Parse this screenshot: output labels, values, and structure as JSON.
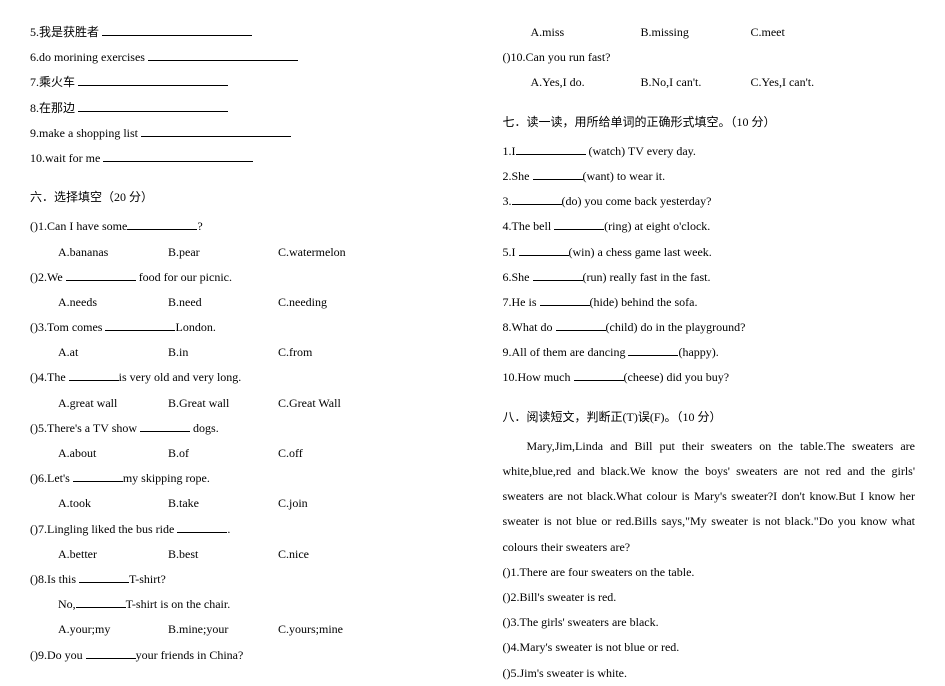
{
  "fontsize": 12,
  "text_color": "#000000",
  "bg_color": "#ffffff",
  "left": {
    "items5_10": [
      "5.我是获胜者",
      "6.do morining exercises",
      "7.乘火车",
      "8.在那边",
      "9.make a shopping list",
      "10.wait for me"
    ],
    "section6_title": "六．选择填空（20 分）",
    "q1": {
      "stem_a": ")1.Can I have some",
      "stem_b": "?",
      "opts": {
        "a": "A.bananas",
        "b": "B.pear",
        "c": "C.watermelon"
      }
    },
    "q2": {
      "stem_a": ")2.We",
      "stem_b": "food for our picnic.",
      "opts": {
        "a": "A.needs",
        "b": "B.need",
        "c": "C.needing"
      }
    },
    "q3": {
      "stem_a": ")3.Tom comes",
      "stem_b": "London.",
      "opts": {
        "a": "A.at",
        "b": "B.in",
        "c": "C.from"
      }
    },
    "q4": {
      "stem_a": ")4.The",
      "stem_b": "is very old and very long.",
      "opts": {
        "a": "A.great wall",
        "b": "B.Great wall",
        "c": "C.Great Wall"
      }
    },
    "q5": {
      "stem_a": ")5.There's a TV show",
      "stem_b": "dogs.",
      "opts": {
        "a": "A.about",
        "b": "B.of",
        "c": "C.off"
      }
    },
    "q6": {
      "stem_a": ")6.Let's",
      "stem_b": "my skipping rope.",
      "opts": {
        "a": "A.took",
        "b": "B.take",
        "c": "C.join"
      }
    },
    "q7": {
      "stem_a": ")7.Lingling liked the bus ride",
      "stem_b": ".",
      "opts": {
        "a": "A.better",
        "b": "B.best",
        "c": "C.nice"
      }
    },
    "q8": {
      "stem_a": ")8.Is this",
      "stem_b": "T-shirt?",
      "line2_a": "No,",
      "line2_b": "T-shirt is on the chair.",
      "opts": {
        "a": "A.your;my",
        "b": "B.mine;your",
        "c": "C.yours;mine"
      }
    },
    "q9": {
      "stem_a": ")9.Do you",
      "stem_b": "your friends in China?"
    }
  },
  "right": {
    "q9_opts": {
      "a": "A.miss",
      "b": "B.missing",
      "c": "C.meet"
    },
    "q10": {
      "stem": ")10.Can you run fast?",
      "opts": {
        "a": "A.Yes,I do.",
        "b": "B.No,I can't.",
        "c": "C.Yes,I can't."
      }
    },
    "section7_title": "七．读一读，用所给单词的正确形式填空。（10 分）",
    "s7": [
      {
        "pre": "1.I",
        "hint": "(watch) TV every day."
      },
      {
        "pre": "2.She",
        "hint": "(want) to wear it."
      },
      {
        "pre": "3.",
        "hint": "(do) you come back yesterday?"
      },
      {
        "pre": "4.The bell",
        "hint": "(ring) at eight o'clock."
      },
      {
        "pre": "5.I",
        "hint": "(win) a chess game last week."
      },
      {
        "pre": "6.She",
        "hint": "(run) really fast in the fast."
      },
      {
        "pre": "7.He is",
        "hint": "(hide) behind the sofa."
      },
      {
        "pre": "8.What do",
        "hint": "(child) do in the playground?"
      },
      {
        "pre": "9.All of them are dancing",
        "hint": "(happy)."
      },
      {
        "pre": "10.How much",
        "hint": "(cheese) did you buy?"
      }
    ],
    "section8_title": "八．阅读短文，判断正(T)误(F)。（10 分）",
    "passage": "Mary,Jim,Linda and Bill put their sweaters on the table.The sweaters are white,blue,red and black.We know the boys' sweaters are not red and the girls' sweaters are not black.What colour is Mary's sweater?I don't know.But I know her sweater is not blue or red.Bills says,\"My sweater is not black.\"Do you know what colours their sweaters are?",
    "s8": [
      ")1.There are four sweaters on the table.",
      ")2.Bill's sweater is red.",
      ")3.The girls' sweaters are black.",
      ")4.Mary's sweater is not blue or red.",
      ")5.Jim's sweater is white."
    ]
  },
  "paren": "(   "
}
